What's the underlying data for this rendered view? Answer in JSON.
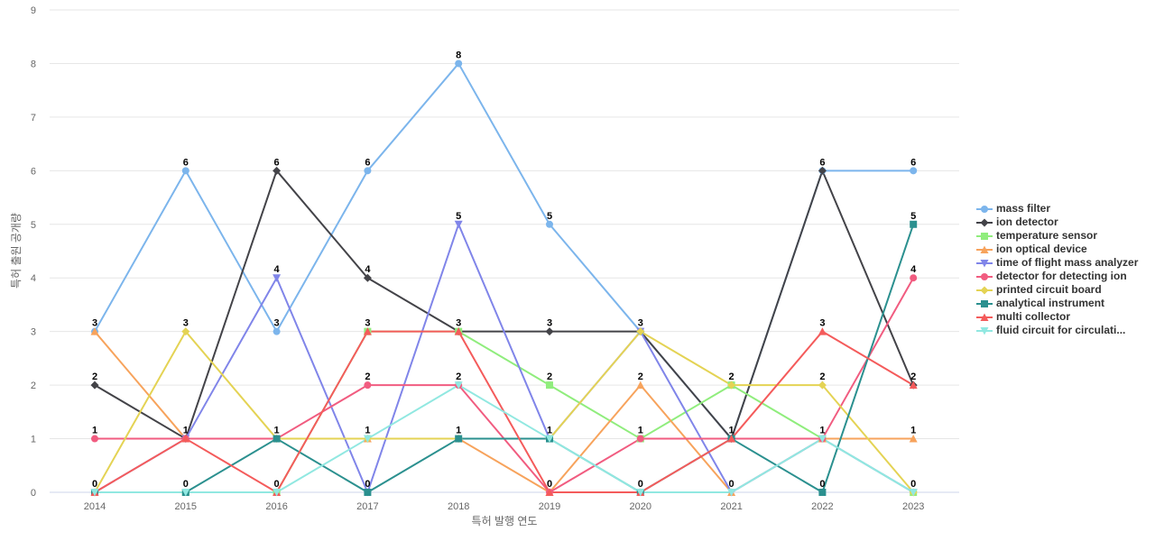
{
  "chart_data": {
    "type": "line",
    "xlabel": "특허 발행 연도",
    "ylabel": "특허 출원 공개량",
    "ylim": [
      0,
      9
    ],
    "yticks": [
      0,
      1,
      2,
      3,
      4,
      5,
      6,
      7,
      8,
      9
    ],
    "categories": [
      "2014",
      "2015",
      "2016",
      "2017",
      "2018",
      "2019",
      "2020",
      "2021",
      "2022",
      "2023"
    ],
    "grid": true,
    "legend_position": "right",
    "series": [
      {
        "name": "mass filter",
        "color": "#7cb5ec",
        "marker": "circle",
        "values": [
          3,
          6,
          3,
          6,
          8,
          5,
          3,
          1,
          6,
          6
        ]
      },
      {
        "name": "ion detector",
        "color": "#434348",
        "marker": "diamond",
        "values": [
          2,
          1,
          6,
          4,
          3,
          3,
          3,
          1,
          6,
          2
        ]
      },
      {
        "name": "temperature sensor",
        "color": "#90ed7d",
        "marker": "square",
        "values": [
          0,
          0,
          0,
          3,
          3,
          2,
          1,
          2,
          1,
          0
        ]
      },
      {
        "name": "ion optical device",
        "color": "#f7a35c",
        "marker": "triangle",
        "values": [
          3,
          1,
          1,
          1,
          1,
          0,
          2,
          0,
          1,
          1
        ]
      },
      {
        "name": "time of flight mass analyzer",
        "color": "#8085e9",
        "marker": "triangle-down",
        "values": [
          0,
          1,
          4,
          0,
          5,
          1,
          3,
          0,
          1,
          0
        ]
      },
      {
        "name": "detector for detecting ion",
        "color": "#f15c80",
        "marker": "circle",
        "values": [
          1,
          1,
          1,
          2,
          2,
          0,
          1,
          1,
          1,
          4
        ]
      },
      {
        "name": "printed circuit board",
        "color": "#e4d354",
        "marker": "diamond",
        "values": [
          0,
          3,
          1,
          1,
          1,
          1,
          3,
          2,
          2,
          0
        ]
      },
      {
        "name": "analytical instrument",
        "color": "#2b908f",
        "marker": "square",
        "values": [
          0,
          0,
          1,
          0,
          1,
          1,
          0,
          1,
          0,
          5
        ]
      },
      {
        "name": "multi collector",
        "color": "#f45b5b",
        "marker": "triangle",
        "values": [
          0,
          1,
          0,
          3,
          3,
          0,
          0,
          1,
          3,
          2
        ]
      },
      {
        "name": "fluid circuit for circulati...",
        "color": "#91e8e1",
        "marker": "triangle-down",
        "values": [
          0,
          0,
          0,
          1,
          2,
          1,
          0,
          0,
          1,
          0
        ]
      }
    ],
    "data_labels": [
      {
        "category": "2014",
        "values": [
          3,
          2,
          1,
          0
        ]
      },
      {
        "category": "2015",
        "values": [
          6,
          3,
          1,
          0
        ]
      },
      {
        "category": "2016",
        "values": [
          6,
          4,
          3,
          1,
          0
        ]
      },
      {
        "category": "2017",
        "values": [
          6,
          4,
          3,
          2,
          1,
          0
        ]
      },
      {
        "category": "2018",
        "values": [
          8,
          5,
          3,
          2,
          1
        ]
      },
      {
        "category": "2019",
        "values": [
          5,
          3,
          2,
          1,
          0
        ]
      },
      {
        "category": "2020",
        "values": [
          3,
          2,
          1,
          0
        ]
      },
      {
        "category": "2021",
        "values": [
          2,
          1,
          0
        ]
      },
      {
        "category": "2022",
        "values": [
          6,
          3,
          2,
          1,
          0
        ]
      },
      {
        "category": "2023",
        "values": [
          6,
          5,
          4,
          2,
          1,
          0
        ]
      }
    ]
  }
}
